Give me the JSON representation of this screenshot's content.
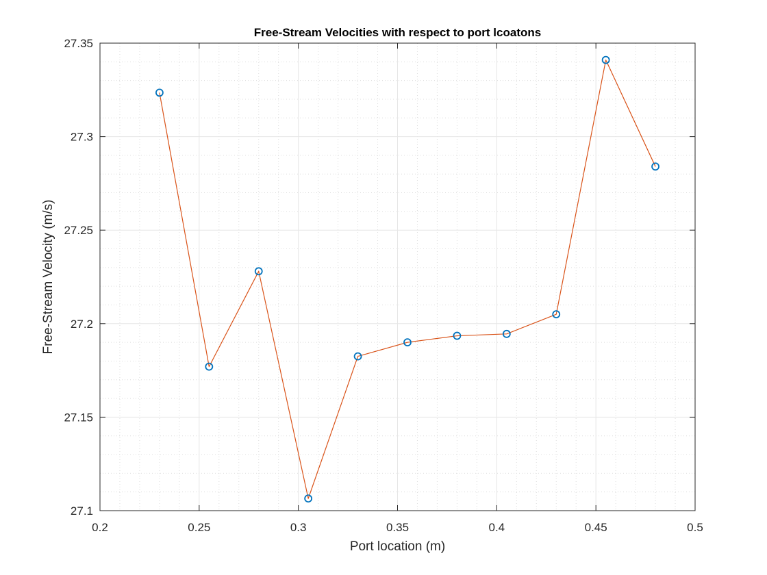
{
  "chart_data": {
    "type": "line",
    "title": "Free-Stream Velocities with respect to port lcoatons",
    "xlabel": "Port location (m)",
    "ylabel": "Free-Stream Velocity (m/s)",
    "xlim": [
      0.2,
      0.5
    ],
    "ylim": [
      27.1,
      27.35
    ],
    "xticks": [
      0.2,
      0.25,
      0.3,
      0.35,
      0.4,
      0.45,
      0.5
    ],
    "xtick_labels": [
      "0.2",
      "0.25",
      "0.3",
      "0.35",
      "0.4",
      "0.45",
      "0.5"
    ],
    "yticks": [
      27.1,
      27.15,
      27.2,
      27.25,
      27.3,
      27.35
    ],
    "ytick_labels": [
      "27.1",
      "27.15",
      "27.2",
      "27.25",
      "27.3",
      "27.35"
    ],
    "grid": true,
    "minor_grid": true,
    "series": [
      {
        "style": "line",
        "color": "#D95319",
        "x": [
          0.23,
          0.255,
          0.28,
          0.305,
          0.33,
          0.355,
          0.38,
          0.405,
          0.43,
          0.455,
          0.48
        ],
        "y": [
          27.3235,
          27.177,
          27.228,
          27.1065,
          27.1825,
          27.19,
          27.1935,
          27.1945,
          27.205,
          27.341,
          27.284
        ]
      },
      {
        "style": "markers",
        "marker": "circle",
        "color": "#0072BD",
        "x": [
          0.23,
          0.255,
          0.28,
          0.305,
          0.33,
          0.355,
          0.38,
          0.405,
          0.43,
          0.455,
          0.48
        ],
        "y": [
          27.3235,
          27.177,
          27.228,
          27.1065,
          27.1825,
          27.19,
          27.1935,
          27.1945,
          27.205,
          27.341,
          27.284
        ]
      }
    ]
  }
}
